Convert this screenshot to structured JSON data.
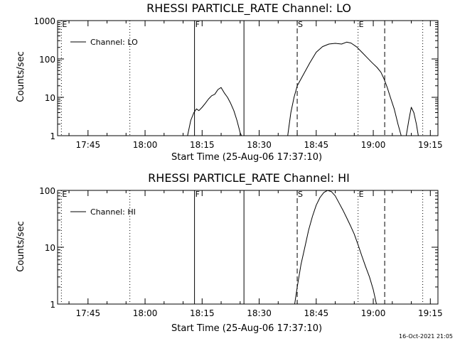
{
  "footer_timestamp": "16-Oct-2021 21:05",
  "chart_data": [
    {
      "type": "line",
      "title": "RHESSI PARTICLE_RATE Channel: LO",
      "xlabel": "Start Time (25-Aug-06 17:37:10)",
      "ylabel": "Counts/sec",
      "xlim": [
        "17:37",
        "19:17"
      ],
      "x_ticks": [
        "17:45",
        "18:00",
        "18:15",
        "18:30",
        "18:45",
        "19:00",
        "19:15"
      ],
      "ylim": [
        1,
        1000
      ],
      "y_scale": "log",
      "y_ticks": [
        "1",
        "10",
        "100",
        "1000"
      ],
      "legend": {
        "label": "Channel: LO",
        "position": "top-left"
      },
      "markers": [
        {
          "time": "17:38",
          "label": "E",
          "style": "dotted"
        },
        {
          "time": "17:56",
          "label": "",
          "style": "dotted"
        },
        {
          "time": "18:13",
          "label": "F",
          "style": "solid"
        },
        {
          "time": "18:26",
          "label": "",
          "style": "solid"
        },
        {
          "time": "18:40",
          "label": "S",
          "style": "dashed"
        },
        {
          "time": "18:56",
          "label": "E",
          "style": "dotted"
        },
        {
          "time": "19:03",
          "label": "",
          "style": "dashed"
        },
        {
          "time": "19:13",
          "label": "",
          "style": "dotted"
        }
      ],
      "series": [
        {
          "segments": [
            [
              [
                "18:11:10",
                1
              ],
              [
                "18:12:00",
                2.5
              ],
              [
                "18:12:50",
                4
              ],
              [
                "18:13:30",
                5
              ],
              [
                "18:14:10",
                4.5
              ],
              [
                "18:15:00",
                5.5
              ],
              [
                "18:15:50",
                7
              ],
              [
                "18:16:40",
                9
              ],
              [
                "18:17:30",
                11
              ],
              [
                "18:18:20",
                12
              ],
              [
                "18:19:10",
                16
              ],
              [
                "18:20:00",
                18
              ],
              [
                "18:20:50",
                13
              ],
              [
                "18:21:40",
                10
              ],
              [
                "18:22:30",
                7
              ],
              [
                "18:23:20",
                4.5
              ],
              [
                "18:24:10",
                2.5
              ],
              [
                "18:25:00",
                1.2
              ],
              [
                "18:25:20",
                1
              ]
            ],
            [
              [
                "18:37:30",
                1
              ],
              [
                "18:38:20",
                4
              ],
              [
                "18:39:10",
                10
              ],
              [
                "18:40:00",
                20
              ],
              [
                "18:41:40",
                40
              ],
              [
                "18:43:20",
                80
              ],
              [
                "18:45:00",
                150
              ],
              [
                "18:46:40",
                210
              ],
              [
                "18:48:20",
                245
              ],
              [
                "18:50:00",
                255
              ],
              [
                "18:51:40",
                245
              ],
              [
                "18:53:00",
                275
              ],
              [
                "18:54:10",
                260
              ],
              [
                "18:55:40",
                205
              ],
              [
                "18:57:00",
                150
              ],
              [
                "18:58:20",
                110
              ],
              [
                "18:59:40",
                80
              ],
              [
                "19:01:00",
                60
              ],
              [
                "19:02:00",
                45
              ],
              [
                "19:02:50",
                30
              ],
              [
                "19:03:40",
                18
              ],
              [
                "19:04:30",
                10
              ],
              [
                "19:05:30",
                5
              ],
              [
                "19:06:30",
                2
              ],
              [
                "19:07:20",
                1
              ]
            ],
            [
              [
                "19:08:40",
                1
              ],
              [
                "19:09:20",
                2.5
              ],
              [
                "19:10:00",
                5.5
              ],
              [
                "19:10:40",
                4
              ],
              [
                "19:11:20",
                2
              ],
              [
                "19:11:50",
                1
              ]
            ]
          ]
        }
      ]
    },
    {
      "type": "line",
      "title": "RHESSI PARTICLE_RATE Channel: HI",
      "xlabel": "Start Time (25-Aug-06 17:37:10)",
      "ylabel": "Counts/sec",
      "xlim": [
        "17:37",
        "19:17"
      ],
      "x_ticks": [
        "17:45",
        "18:00",
        "18:15",
        "18:30",
        "18:45",
        "19:00",
        "19:15"
      ],
      "ylim": [
        1,
        100
      ],
      "y_scale": "log",
      "y_ticks": [
        "1",
        "10",
        "100"
      ],
      "legend": {
        "label": "Channel: HI",
        "position": "top-left"
      },
      "markers": [
        {
          "time": "17:38",
          "label": "E",
          "style": "dotted"
        },
        {
          "time": "17:56",
          "label": "",
          "style": "dotted"
        },
        {
          "time": "18:13",
          "label": "F",
          "style": "solid"
        },
        {
          "time": "18:26",
          "label": "",
          "style": "solid"
        },
        {
          "time": "18:40",
          "label": "S",
          "style": "dashed"
        },
        {
          "time": "18:56",
          "label": "E",
          "style": "dotted"
        },
        {
          "time": "19:03",
          "label": "",
          "style": "dashed"
        },
        {
          "time": "19:13",
          "label": "",
          "style": "dotted"
        }
      ],
      "series": [
        {
          "segments": [
            [
              [
                "18:39:20",
                1
              ],
              [
                "18:40:00",
                2
              ],
              [
                "18:41:00",
                5
              ],
              [
                "18:42:00",
                10
              ],
              [
                "18:43:00",
                20
              ],
              [
                "18:44:00",
                35
              ],
              [
                "18:45:00",
                55
              ],
              [
                "18:46:00",
                75
              ],
              [
                "18:47:00",
                92
              ],
              [
                "18:48:00",
                100
              ],
              [
                "18:49:00",
                95
              ],
              [
                "18:50:00",
                80
              ],
              [
                "18:51:00",
                60
              ],
              [
                "18:52:00",
                45
              ],
              [
                "18:53:00",
                33
              ],
              [
                "18:54:00",
                24
              ],
              [
                "18:55:00",
                17
              ],
              [
                "18:56:00",
                11
              ],
              [
                "18:57:00",
                7
              ],
              [
                "18:58:00",
                4.5
              ],
              [
                "18:59:00",
                3
              ],
              [
                "19:00:00",
                1.8
              ],
              [
                "19:00:50",
                1
              ]
            ]
          ]
        }
      ]
    }
  ]
}
